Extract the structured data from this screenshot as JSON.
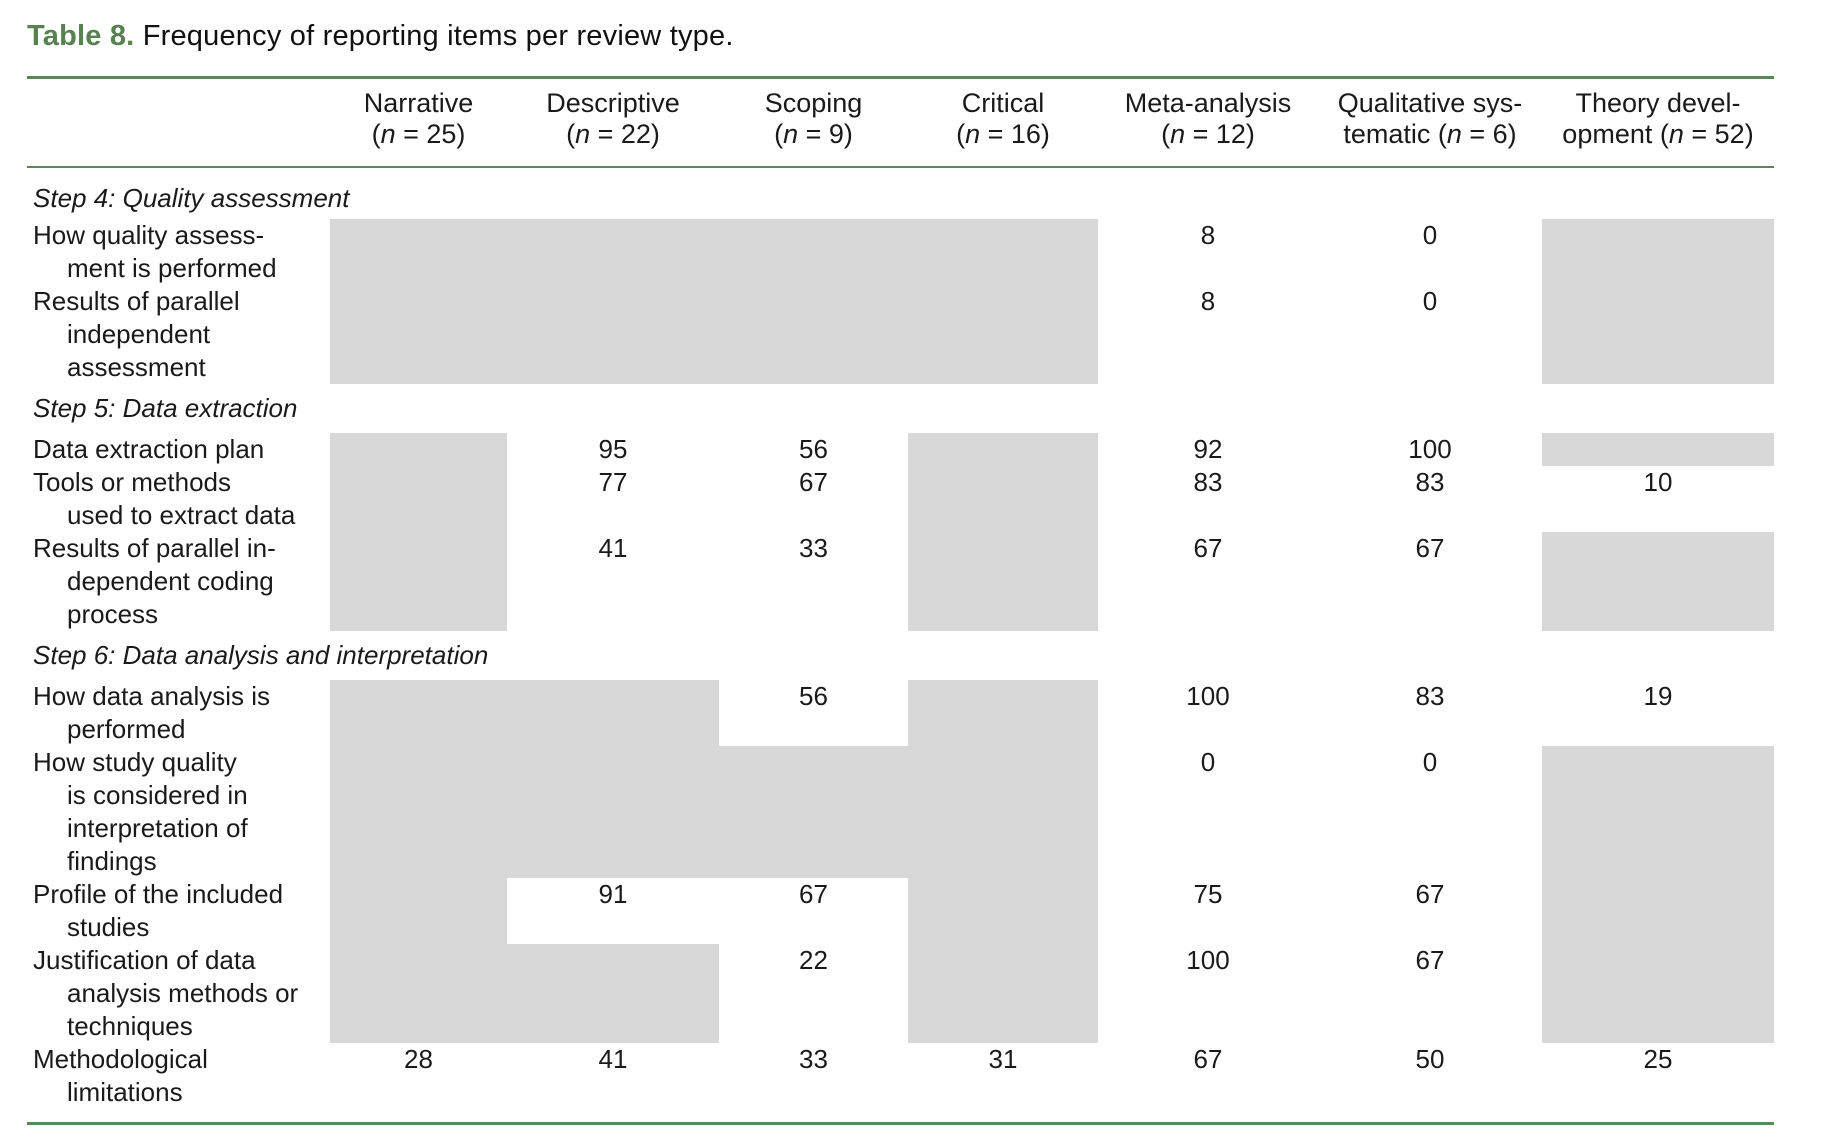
{
  "title": {
    "label": "Table 8.",
    "text": "Frequency of reporting items per review type."
  },
  "colors": {
    "accent_green": "#5a8756",
    "title_green": "#55824e",
    "cell_gray": "#d8d8d8"
  },
  "columns": [
    {
      "line1": "Narrative",
      "line2": "(n = 25)"
    },
    {
      "line1": "Descriptive",
      "line2": "(n = 22)"
    },
    {
      "line1": "Scoping",
      "line2": "(n = 9)"
    },
    {
      "line1": "Critical",
      "line2": "(n = 16)"
    },
    {
      "line1": "Meta-analysis",
      "line2": "(n = 12)"
    },
    {
      "line1": "Qualitative sys-",
      "line2": "tematic (n = 6)"
    },
    {
      "line1": "Theory devel-",
      "line2": "opment (n = 52)"
    }
  ],
  "gray_meaning": "shaded cell, item not applicable for this review type",
  "sections": [
    {
      "heading": "Step 4: Quality assessment",
      "rows": [
        {
          "label_lines": [
            "How quality assess-",
            "ment is performed"
          ],
          "cells": [
            "gray",
            "gray",
            "gray",
            "gray",
            "8",
            "0",
            "gray"
          ]
        },
        {
          "label_lines": [
            "Results of parallel",
            "independent",
            "assessment"
          ],
          "cells": [
            "gray",
            "gray",
            "gray",
            "gray",
            "8",
            "0",
            "gray"
          ]
        }
      ]
    },
    {
      "heading": "Step 5: Data extraction",
      "rows": [
        {
          "label_lines": [
            "Data extraction plan"
          ],
          "cells": [
            "gray",
            "95",
            "56",
            "gray",
            "92",
            "100",
            "gray"
          ]
        },
        {
          "label_lines": [
            "Tools or methods",
            "used to extract data"
          ],
          "cells": [
            "gray",
            "77",
            "67",
            "gray",
            "83",
            "83",
            "10"
          ]
        },
        {
          "label_lines": [
            "Results of parallel in-",
            "dependent coding",
            "process"
          ],
          "cells": [
            "gray",
            "41",
            "33",
            "gray",
            "67",
            "67",
            "gray"
          ]
        }
      ]
    },
    {
      "heading": "Step 6: Data analysis and interpretation",
      "rows": [
        {
          "label_lines": [
            "How data analysis is",
            "performed"
          ],
          "cells": [
            "gray",
            "gray",
            "56",
            "gray",
            "100",
            "83",
            "19"
          ]
        },
        {
          "label_lines": [
            "How study quality",
            "is considered in",
            "interpretation of",
            "findings"
          ],
          "cells": [
            "gray",
            "gray",
            "gray",
            "gray",
            "0",
            "0",
            "gray"
          ]
        },
        {
          "label_lines": [
            "Profile of the included",
            "studies"
          ],
          "cells": [
            "gray",
            "91",
            "67",
            "gray",
            "75",
            "67",
            "gray"
          ]
        },
        {
          "label_lines": [
            "Justification of data",
            "analysis methods or",
            "techniques"
          ],
          "cells": [
            "gray",
            "gray",
            "22",
            "gray",
            "100",
            "67",
            "gray"
          ]
        },
        {
          "label_lines": [
            "Methodological",
            "limitations"
          ],
          "cells": [
            "28",
            "41",
            "33",
            "31",
            "67",
            "50",
            "25"
          ]
        }
      ]
    }
  ]
}
